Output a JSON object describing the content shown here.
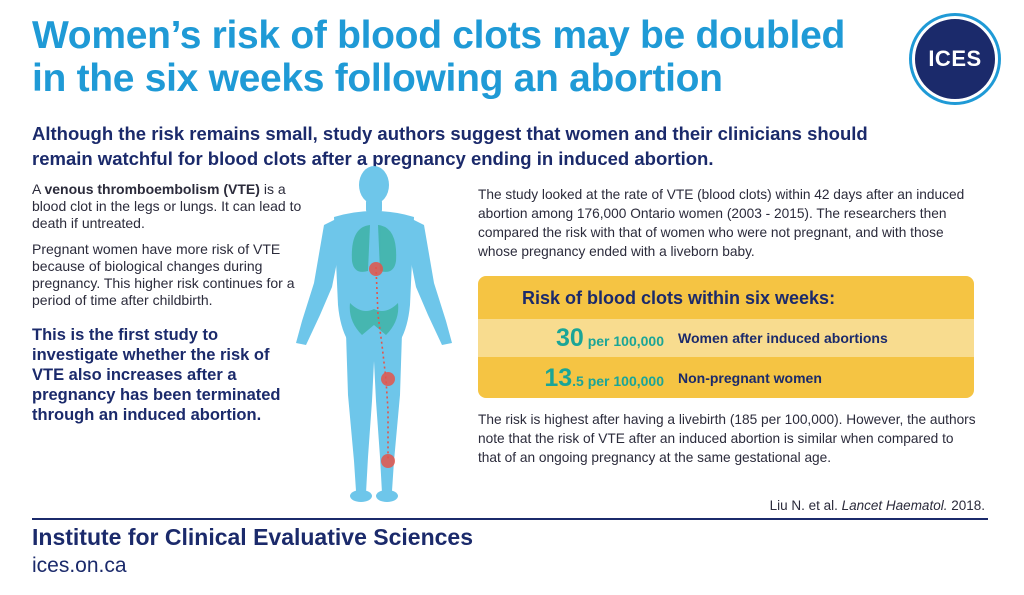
{
  "header": {
    "title_line1": "Women’s risk of blood clots may be doubled",
    "title_line2": "in the six weeks following an abortion",
    "logo_text": "ICES",
    "subtitle_line1": "Although the risk remains small, study authors suggest that women and their clinicians should",
    "subtitle_line2": "remain watchful for blood clots after a pregnancy ending in induced abortion."
  },
  "left": {
    "p1_prefix": "A ",
    "p1_term": "venous thromboembolism (VTE)",
    "p1_rest": " is a blood clot in the legs or lungs. It can lead to death if untreated.",
    "p2": "Pregnant women have more risk of VTE because of biological changes during pregnancy. This higher risk continues for a period of time after childbirth.",
    "highlight": "This is the first study to investigate whether the risk of VTE also increases after a pregnancy has been terminated through an induced abortion."
  },
  "right": {
    "intro": "The study looked at the rate of VTE (blood clots) within 42 days after an induced abortion among 176,000 Ontario women (2003 - 2015). The researchers then compared the risk with that of women who were not pregnant, and with those whose pregnancy ended with a liveborn baby.",
    "risk_box": {
      "title": "Risk of blood clots within six weeks:",
      "rows": [
        {
          "big": "30",
          "small": "",
          "unit": " per 100,000",
          "label": "Women after induced abortions"
        },
        {
          "big": "13",
          "small": ".5",
          "unit": " per 100,000",
          "label": "Non-pregnant women"
        }
      ]
    },
    "after": "The risk is highest after having a livebirth (185 per 100,000). However, the authors note that the risk of VTE after an induced abortion is similar when compared to that of an ongoing pregnancy at the same gestational age."
  },
  "citation": {
    "authors": "Liu N. et al. ",
    "journal": "Lancet Haematol.",
    "year": " 2018."
  },
  "footer": {
    "org": "Institute for Clinical Evaluative Sciences",
    "url": "ices.on.ca"
  },
  "colors": {
    "title_blue": "#1f9ad6",
    "navy": "#1b2a6b",
    "body_blue": "#6ec6ea",
    "accent_yellow": "#f5c443",
    "teal": "#1aa597",
    "clot_red": "#e4544a"
  }
}
